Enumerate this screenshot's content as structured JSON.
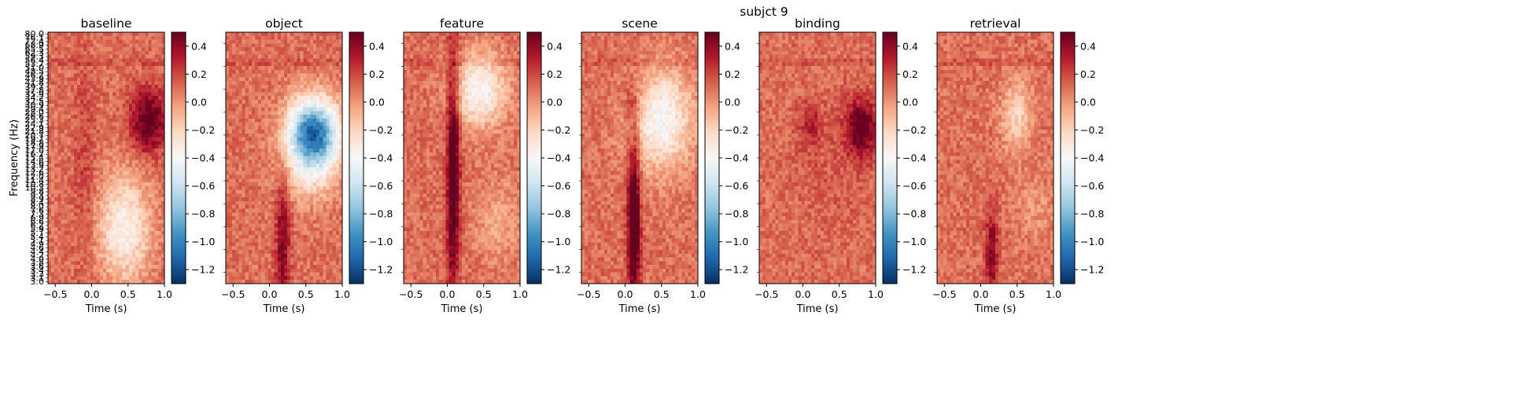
{
  "figure": {
    "suptitle": "subjct 9"
  },
  "chart_data": [
    {
      "type": "heatmap",
      "title": "baseline",
      "xlabel": "Time (s)",
      "ylabel": "Frequency (Hz)",
      "xlim": [
        -0.6,
        1.0
      ],
      "x_ticks": [
        "-0.5",
        "0.0",
        "0.5",
        "1.0"
      ],
      "y_ticks": [
        "80.0",
        "76.1",
        "72.4",
        "68.9",
        "65.5",
        "62.3",
        "59.3",
        "56.4",
        "53.7",
        "51.0",
        "48.5",
        "46.2",
        "43.9",
        "41.8",
        "39.7",
        "37.8",
        "35.9",
        "34.2",
        "32.5",
        "30.9",
        "29.4",
        "28.0",
        "26.6",
        "25.3",
        "24.1",
        "22.9",
        "21.8",
        "20.7",
        "19.7",
        "18.8",
        "17.9",
        "17.0",
        "16.2",
        "15.4",
        "14.6",
        "13.9",
        "13.2",
        "12.6",
        "12.0",
        "11.4",
        "10.8",
        "10.3",
        "9.8",
        "9.3",
        "8.9",
        "8.4",
        "8.0",
        "7.6",
        "7.3",
        "6.9",
        "6.6",
        "6.2",
        "5.9",
        "5.7",
        "5.4",
        "5.1",
        "4.9",
        "4.6",
        "4.4",
        "4.2",
        "4.0",
        "3.8",
        "3.6",
        "3.4",
        "3.3",
        "3.1",
        "3.0"
      ],
      "blobs": [
        {
          "t": 0.78,
          "f": 0.35,
          "st": 0.18,
          "sf": 0.09,
          "v": 0.45
        },
        {
          "t": 0.45,
          "f": 0.78,
          "st": 0.25,
          "sf": 0.15,
          "v": -0.45
        },
        {
          "t": -0.1,
          "f": 0.55,
          "st": 0.1,
          "sf": 0.3,
          "v": 0.12
        }
      ]
    },
    {
      "type": "heatmap",
      "title": "object",
      "xlabel": "Time (s)",
      "xlim": [
        -0.6,
        1.0
      ],
      "x_ticks": [
        "-0.5",
        "0.0",
        "0.5",
        "1.0"
      ],
      "blobs": [
        {
          "t": 0.6,
          "f": 0.41,
          "st": 0.25,
          "sf": 0.1,
          "v": -1.25
        },
        {
          "t": 0.18,
          "f": 0.85,
          "st": 0.07,
          "sf": 0.2,
          "v": 0.35
        },
        {
          "t": 0.55,
          "f": 0.6,
          "st": 0.3,
          "sf": 0.08,
          "v": -0.15
        }
      ]
    },
    {
      "type": "heatmap",
      "title": "feature",
      "xlabel": "Time (s)",
      "xlim": [
        -0.6,
        1.0
      ],
      "x_ticks": [
        "-0.5",
        "0.0",
        "0.5",
        "1.0"
      ],
      "blobs": [
        {
          "t": 0.08,
          "f": 0.55,
          "st": 0.06,
          "sf": 0.35,
          "v": 0.55
        },
        {
          "t": 0.45,
          "f": 0.23,
          "st": 0.25,
          "sf": 0.1,
          "v": -0.5
        },
        {
          "t": 0.7,
          "f": 0.75,
          "st": 0.2,
          "sf": 0.12,
          "v": -0.15
        }
      ]
    },
    {
      "type": "heatmap",
      "title": "scene",
      "xlabel": "Time (s)",
      "xlim": [
        -0.6,
        1.0
      ],
      "x_ticks": [
        "-0.5",
        "0.0",
        "0.5",
        "1.0"
      ],
      "blobs": [
        {
          "t": 0.12,
          "f": 0.75,
          "st": 0.06,
          "sf": 0.25,
          "v": 0.6
        },
        {
          "t": 0.5,
          "f": 0.35,
          "st": 0.3,
          "sf": 0.14,
          "v": -0.5
        },
        {
          "t": 0.1,
          "f": 0.28,
          "st": 0.1,
          "sf": 0.06,
          "v": 0.15
        }
      ]
    },
    {
      "type": "heatmap",
      "title": "binding",
      "xlabel": "Time (s)",
      "xlim": [
        -0.6,
        1.0
      ],
      "x_ticks": [
        "-0.5",
        "0.0",
        "0.5",
        "1.0"
      ],
      "blobs": [
        {
          "t": 0.8,
          "f": 0.38,
          "st": 0.15,
          "sf": 0.08,
          "v": 0.45
        },
        {
          "t": 0.1,
          "f": 0.37,
          "st": 0.1,
          "sf": 0.06,
          "v": 0.2
        },
        {
          "t": 0.4,
          "f": 0.55,
          "st": 0.4,
          "sf": 0.2,
          "v": 0.05
        }
      ]
    },
    {
      "type": "heatmap",
      "title": "retrieval",
      "xlabel": "Time (s)",
      "xlim": [
        -0.6,
        1.0
      ],
      "x_ticks": [
        "-0.5",
        "0.0",
        "0.5",
        "1.0"
      ],
      "blobs": [
        {
          "t": 0.15,
          "f": 0.88,
          "st": 0.06,
          "sf": 0.12,
          "v": 0.35
        },
        {
          "t": 0.5,
          "f": 0.33,
          "st": 0.15,
          "sf": 0.1,
          "v": -0.3
        },
        {
          "t": 0.75,
          "f": 0.7,
          "st": 0.2,
          "sf": 0.1,
          "v": -0.1
        }
      ]
    }
  ],
  "colorbar": {
    "range": [
      -1.3,
      0.5
    ],
    "ticks": [
      0.4,
      0.2,
      0.0,
      -0.2,
      -0.4,
      -0.6,
      -0.8,
      -1.0,
      -1.2
    ],
    "tick_labels": [
      "0.4",
      "0.2",
      "0.0",
      "−0.2",
      "−0.4",
      "−0.6",
      "−0.8",
      "−1.0",
      "−1.2"
    ],
    "colormap": [
      "#053061",
      "#2166ac",
      "#4393c3",
      "#92c5de",
      "#d1e5f0",
      "#f7f7f7",
      "#fddbc7",
      "#f4a582",
      "#d6604d",
      "#b2182b",
      "#67001f"
    ]
  }
}
